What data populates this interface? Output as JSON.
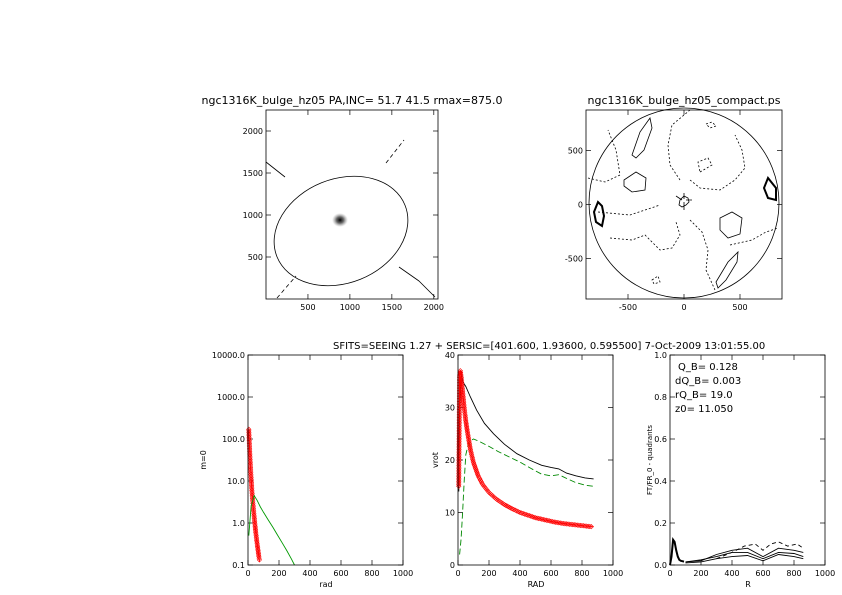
{
  "chart_data": [
    {
      "id": "p1",
      "type": "contour-image",
      "title": "ngc1316K_bulge_hz05 PA,INC= 51.7 41.5 rmax=875.0",
      "xlabel": "",
      "ylabel": "",
      "xlim": [
        0,
        2050
      ],
      "ylim": [
        0,
        2250
      ],
      "xticks": [
        "500",
        "1000",
        "1500",
        "2000"
      ],
      "yticks": [
        "500",
        "1000",
        "1500",
        "2000"
      ],
      "blob_center": [
        905,
        945
      ]
    },
    {
      "id": "p2",
      "type": "contour",
      "title": "ngc1316K_bulge_hz05_compact.ps",
      "xlabel": "",
      "ylabel": "",
      "xlim": [
        -875,
        875
      ],
      "ylim": [
        -875,
        875
      ],
      "xticks": [
        "-500",
        "0",
        "500"
      ],
      "yticks": [
        "-500",
        "0",
        "500"
      ]
    },
    {
      "id": "p3",
      "type": "line",
      "title": "",
      "xlabel": "rad",
      "ylabel": "m=0",
      "xlim": [
        0,
        1000
      ],
      "ylim": [
        0.1,
        10000
      ],
      "log_y": true,
      "xticks": [
        "0",
        "200",
        "400",
        "600",
        "800",
        "1000"
      ],
      "yticks": [
        "10000.0",
        "1000.0",
        "100.0",
        "10.0",
        "1.0",
        "0.1"
      ],
      "series": [
        {
          "color": "#ff0000",
          "marker": "diamond",
          "x": [
            5,
            10,
            15,
            20,
            25,
            30,
            35,
            40,
            45,
            50,
            55,
            60,
            65,
            70,
            75
          ],
          "y": [
            170,
            60,
            25,
            12,
            6,
            3.5,
            2.2,
            1.4,
            0.9,
            0.6,
            0.42,
            0.3,
            0.22,
            0.16,
            0.12
          ]
        },
        {
          "color": "#009900",
          "marker": "none",
          "x": [
            5,
            20,
            40,
            60,
            80,
            100,
            130,
            160,
            190,
            220,
            250,
            280,
            300
          ],
          "y": [
            0.5,
            2.5,
            4.5,
            3.4,
            2.4,
            1.8,
            1.2,
            0.8,
            0.52,
            0.34,
            0.22,
            0.14,
            0.1
          ]
        }
      ]
    },
    {
      "id": "p4",
      "type": "line",
      "title": "SFITS=SEEING 1.27 + SERSIC=[401.600, 1.93600, 0.595500]   7-Oct-2009 13:01:55.00",
      "xlabel": "RAD",
      "ylabel": "vrot",
      "xlim": [
        0,
        1000
      ],
      "ylim": [
        0,
        40
      ],
      "xticks": [
        "0",
        "200",
        "400",
        "600",
        "800",
        "1000"
      ],
      "yticks": [
        "0",
        "10",
        "20",
        "30",
        "40"
      ],
      "series": [
        {
          "color": "#000000",
          "dash": "none",
          "x": [
            5,
            10,
            20,
            30,
            50,
            80,
            120,
            170,
            230,
            300,
            380,
            460,
            540,
            600,
            650,
            700,
            760,
            820,
            875
          ],
          "y": [
            14,
            28,
            37,
            35,
            34,
            32,
            29.5,
            27,
            25,
            23,
            21.2,
            20,
            19,
            18.6,
            18.3,
            17.5,
            17,
            16.6,
            16.4
          ]
        },
        {
          "color": "#008800",
          "dash": "6,3",
          "x": [
            10,
            20,
            30,
            40,
            50,
            70,
            100,
            140,
            200,
            260,
            330,
            400,
            470,
            540,
            600,
            650,
            700,
            760,
            820,
            875
          ],
          "y": [
            2,
            5,
            10,
            16,
            21,
            23.5,
            24,
            23.5,
            22.6,
            21.6,
            20.6,
            19.6,
            18.4,
            17.3,
            17,
            17.2,
            16.5,
            15.7,
            15.2,
            15
          ]
        },
        {
          "color": "#ff0000",
          "dash": "none",
          "marker": "diamond",
          "x": [
            5,
            10,
            15,
            20,
            25,
            30,
            40,
            50,
            60,
            80,
            100,
            130,
            160,
            200,
            250,
            300,
            350,
            400,
            450,
            500,
            560,
            620,
            680,
            740,
            800,
            860,
            875
          ],
          "y": [
            15,
            36,
            37,
            36,
            34.5,
            33,
            30,
            27.5,
            25.5,
            22,
            19.5,
            17,
            15.3,
            13.8,
            12.5,
            11.5,
            10.7,
            10,
            9.5,
            9,
            8.6,
            8.2,
            7.9,
            7.7,
            7.5,
            7.3,
            7.3
          ]
        }
      ]
    },
    {
      "id": "p5",
      "type": "line",
      "title": "",
      "xlabel": "R",
      "ylabel": "FT/FR_0 - quadrants",
      "xlim": [
        0,
        1000
      ],
      "ylim": [
        0,
        1
      ],
      "xticks": [
        "0",
        "200",
        "400",
        "600",
        "800",
        "1000"
      ],
      "yticks": [
        "0.0",
        "0.2",
        "0.4",
        "0.6",
        "0.8",
        "1.0"
      ],
      "annotations": [
        "Q_B=  0.128",
        "dQ_B=  0.003",
        "rQ_B=  19.0",
        "z0= 11.050"
      ],
      "series": [
        {
          "color": "#000000",
          "dash": "none",
          "width": 2,
          "x": [
            0,
            10,
            20,
            30,
            40,
            50,
            60,
            70,
            80,
            90
          ],
          "y": [
            0.0,
            0.04,
            0.12,
            0.11,
            0.07,
            0.04,
            0.025,
            0.02,
            0.018,
            0.016
          ]
        },
        {
          "color": "#000000",
          "dash": "none",
          "x": [
            100,
            200,
            300,
            400,
            500,
            600,
            700,
            800,
            860
          ],
          "y": [
            0.015,
            0.02,
            0.05,
            0.07,
            0.08,
            0.04,
            0.08,
            0.07,
            0.06
          ]
        },
        {
          "color": "#000000",
          "dash": "none",
          "x": [
            100,
            200,
            300,
            400,
            500,
            600,
            700,
            800,
            860
          ],
          "y": [
            0.015,
            0.025,
            0.04,
            0.06,
            0.06,
            0.03,
            0.06,
            0.055,
            0.04
          ]
        },
        {
          "color": "#000000",
          "dash": "none",
          "x": [
            100,
            200,
            300,
            400,
            500,
            600,
            700,
            800,
            860
          ],
          "y": [
            0.01,
            0.015,
            0.03,
            0.04,
            0.045,
            0.02,
            0.05,
            0.04,
            0.03
          ]
        },
        {
          "color": "#000000",
          "dash": "4,3",
          "x": [
            300,
            400,
            480,
            550,
            600,
            650,
            700,
            760,
            820,
            860
          ],
          "y": [
            0.03,
            0.06,
            0.09,
            0.1,
            0.07,
            0.1,
            0.11,
            0.09,
            0.1,
            0.08
          ]
        }
      ]
    }
  ]
}
